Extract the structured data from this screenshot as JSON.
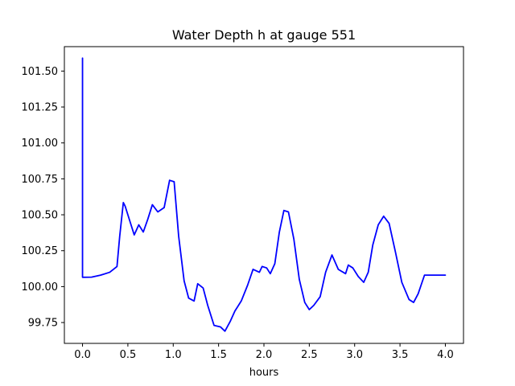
{
  "chart_data": {
    "type": "line",
    "title": "Water Depth h at gauge 551",
    "xlabel": "hours",
    "ylabel": "",
    "xlim": [
      -0.2,
      4.2
    ],
    "ylim": [
      99.605,
      101.67
    ],
    "xticks": [
      {
        "value": 0.0,
        "label": "0.0"
      },
      {
        "value": 0.5,
        "label": "0.5"
      },
      {
        "value": 1.0,
        "label": "1.0"
      },
      {
        "value": 1.5,
        "label": "1.5"
      },
      {
        "value": 2.0,
        "label": "2.0"
      },
      {
        "value": 2.5,
        "label": "2.5"
      },
      {
        "value": 3.0,
        "label": "3.0"
      },
      {
        "value": 3.5,
        "label": "3.5"
      },
      {
        "value": 4.0,
        "label": "4.0"
      }
    ],
    "yticks": [
      {
        "value": 99.75,
        "label": "99.75"
      },
      {
        "value": 100.0,
        "label": "100.00"
      },
      {
        "value": 100.25,
        "label": "100.25"
      },
      {
        "value": 100.5,
        "label": "100.50"
      },
      {
        "value": 100.75,
        "label": "100.75"
      },
      {
        "value": 101.0,
        "label": "101.00"
      },
      {
        "value": 101.25,
        "label": "101.25"
      },
      {
        "value": 101.5,
        "label": "101.50"
      }
    ],
    "grid": false,
    "series": [
      {
        "color": "#0000ff",
        "x": [
          0.0,
          0.0,
          0.001,
          0.1,
          0.2,
          0.3,
          0.38,
          0.41,
          0.45,
          0.47,
          0.52,
          0.57,
          0.62,
          0.67,
          0.72,
          0.77,
          0.83,
          0.9,
          0.96,
          1.01,
          1.06,
          1.12,
          1.17,
          1.23,
          1.27,
          1.33,
          1.38,
          1.45,
          1.52,
          1.57,
          1.63,
          1.68,
          1.75,
          1.82,
          1.88,
          1.95,
          1.98,
          2.03,
          2.07,
          2.12,
          2.17,
          2.22,
          2.27,
          2.33,
          2.39,
          2.45,
          2.5,
          2.55,
          2.62,
          2.68,
          2.75,
          2.82,
          2.9,
          2.93,
          2.98,
          3.04,
          3.1,
          3.15,
          3.2,
          3.26,
          3.32,
          3.38,
          3.45,
          3.52,
          3.6,
          3.65,
          3.7,
          3.77,
          3.82,
          3.86,
          3.92,
          4.0
        ],
        "y": [
          101.59,
          100.065,
          100.065,
          100.066,
          100.08,
          100.1,
          100.14,
          100.35,
          100.585,
          100.56,
          100.46,
          100.36,
          100.43,
          100.38,
          100.47,
          100.57,
          100.52,
          100.55,
          100.74,
          100.73,
          100.35,
          100.04,
          99.92,
          99.9,
          100.02,
          99.99,
          99.87,
          99.73,
          99.72,
          99.69,
          99.76,
          99.83,
          99.9,
          100.01,
          100.12,
          100.1,
          100.14,
          100.13,
          100.09,
          100.16,
          100.38,
          100.53,
          100.52,
          100.33,
          100.05,
          99.89,
          99.84,
          99.87,
          99.93,
          100.1,
          100.22,
          100.12,
          100.09,
          100.15,
          100.13,
          100.07,
          100.03,
          100.1,
          100.29,
          100.43,
          100.49,
          100.44,
          100.24,
          100.03,
          99.91,
          99.89,
          99.95,
          100.08,
          100.08,
          100.08,
          100.08,
          100.08
        ]
      }
    ]
  }
}
